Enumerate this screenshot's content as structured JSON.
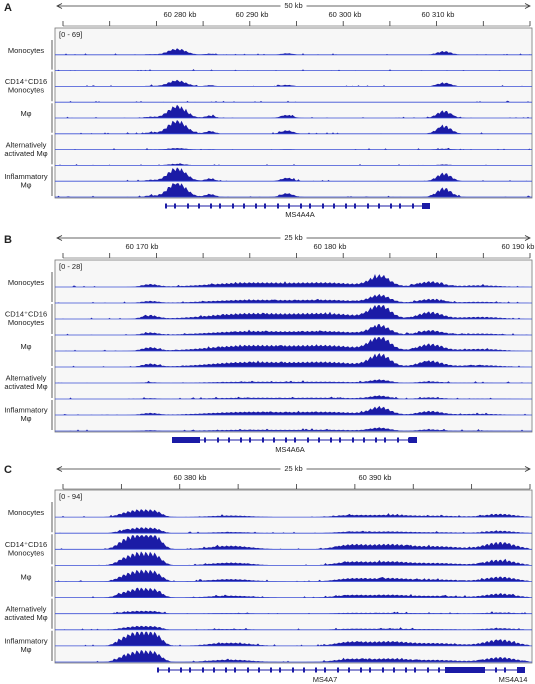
{
  "panels": [
    {
      "label": "A",
      "scale": "50 kb",
      "ruler_labels": [
        "60 280 kb",
        "60 290 kb",
        "60 300 kb",
        "60 310 kb"
      ],
      "range": "[0 - 69]",
      "groups": [
        [
          "Monocytes"
        ],
        [
          "CD14⁺CD16",
          "Monocytes"
        ],
        [
          "Mφ"
        ],
        [
          "Alternatively",
          "activated Mφ"
        ],
        [
          "Inflammatory",
          "Mφ"
        ]
      ],
      "genes": [
        "MS4A4A"
      ]
    },
    {
      "label": "B",
      "scale": "25 kb",
      "ruler_labels": [
        "60 170 kb",
        "60 180 kb",
        "60 190 kb"
      ],
      "range": "[0 - 28]",
      "groups": [
        [
          "Monocytes"
        ],
        [
          "CD14⁺CD16",
          "Monocytes"
        ],
        [
          "Mφ"
        ],
        [
          "Alternatively",
          "activated Mφ"
        ],
        [
          "Inflammatory",
          "Mφ"
        ]
      ],
      "genes": [
        "MS4A6A"
      ]
    },
    {
      "label": "C",
      "scale": "25 kb",
      "ruler_labels": [
        "60 380 kb",
        "60 390 kb"
      ],
      "range": "[0 - 94]",
      "groups": [
        [
          "Monocytes"
        ],
        [
          "CD14⁺CD16",
          "Monocytes"
        ],
        [
          "Mφ"
        ],
        [
          "Alternatively",
          "activated Mφ"
        ],
        [
          "Inflammatory",
          "Mφ"
        ]
      ],
      "genes": [
        "MS4A7",
        "MS4A14"
      ]
    }
  ]
}
